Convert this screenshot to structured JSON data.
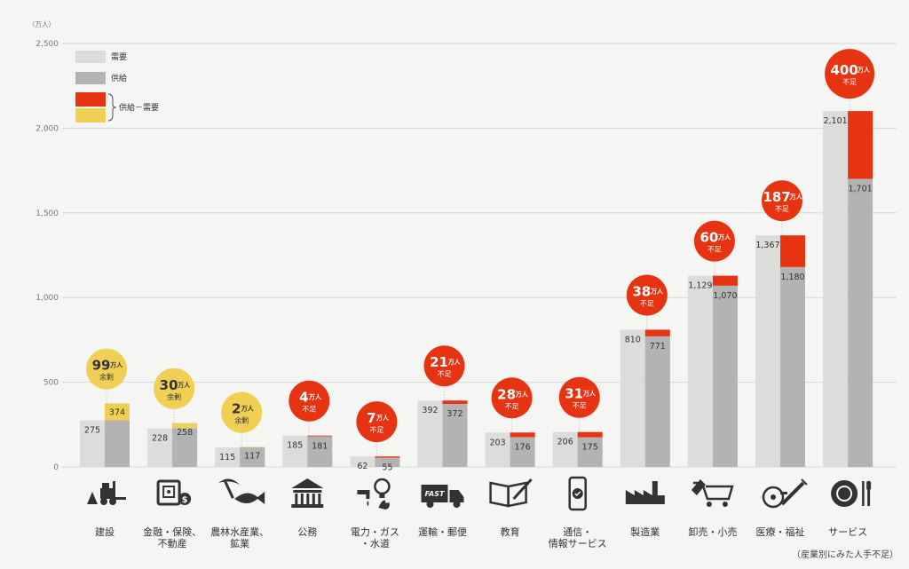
{
  "chart_data": {
    "type": "bar",
    "unit_label": "（万人）",
    "y_ticks": [
      "0",
      "500",
      "1,000",
      "1,500",
      "2,000",
      "2,500"
    ],
    "ylim": [
      0,
      2500
    ],
    "legend": {
      "demand": "需要",
      "supply": "供給",
      "diff": "供給－需要"
    },
    "categories": [
      {
        "label": [
          "建設"
        ],
        "demand": 275,
        "supply": 374,
        "demand_label": "275",
        "supply_label": "374",
        "gap": "99",
        "gap_unit": "万人",
        "gap_word": "余剰",
        "kind": "surplus",
        "icon": "construction-forklift-icon"
      },
      {
        "label": [
          "金融・保険、",
          "不動産"
        ],
        "demand": 228,
        "supply": 258,
        "demand_label": "228",
        "supply_label": "258",
        "gap": "30",
        "gap_unit": "万人",
        "gap_word": "余剰",
        "kind": "surplus",
        "icon": "safe-money-icon"
      },
      {
        "label": [
          "農林水産業、",
          "鉱業"
        ],
        "demand": 115,
        "supply": 117,
        "demand_label": "115",
        "supply_label": "117",
        "gap": "2",
        "gap_unit": "万人",
        "gap_word": "余剰",
        "kind": "surplus",
        "icon": "pickaxe-fish-icon"
      },
      {
        "label": [
          "公務"
        ],
        "demand": 185,
        "supply": 181,
        "demand_label": "185",
        "supply_label": "181",
        "gap": "4",
        "gap_unit": "万人",
        "gap_word": "不足",
        "kind": "shortage",
        "icon": "government-building-icon"
      },
      {
        "label": [
          "電力・ガス",
          "・水道"
        ],
        "demand": 62,
        "supply": 55,
        "demand_label": "62",
        "supply_label": "55",
        "gap": "7",
        "gap_unit": "万人",
        "gap_word": "不足",
        "kind": "shortage",
        "icon": "utilities-icon"
      },
      {
        "label": [
          "運輸・郵便"
        ],
        "demand": 392,
        "supply": 372,
        "demand_label": "392",
        "supply_label": "372",
        "gap": "21",
        "gap_unit": "万人",
        "gap_word": "不足",
        "kind": "shortage",
        "icon": "delivery-truck-icon"
      },
      {
        "label": [
          "教育"
        ],
        "demand": 203,
        "supply": 176,
        "demand_label": "203",
        "supply_label": "176",
        "gap": "28",
        "gap_unit": "万人",
        "gap_word": "不足",
        "kind": "shortage",
        "icon": "open-book-icon"
      },
      {
        "label": [
          "通信・",
          "情報サービス"
        ],
        "demand": 206,
        "supply": 175,
        "demand_label": "206",
        "supply_label": "175",
        "gap": "31",
        "gap_unit": "万人",
        "gap_word": "不足",
        "kind": "shortage",
        "icon": "smartphone-icon"
      },
      {
        "label": [
          "製造業"
        ],
        "demand": 810,
        "supply": 771,
        "demand_label": "810",
        "supply_label": "771",
        "gap": "38",
        "gap_unit": "万人",
        "gap_word": "不足",
        "kind": "shortage",
        "icon": "factory-icon"
      },
      {
        "label": [
          "卸売・小売"
        ],
        "demand": 1129,
        "supply": 1070,
        "demand_label": "1,129",
        "supply_label": "1,070",
        "gap": "60",
        "gap_unit": "万人",
        "gap_word": "不足",
        "kind": "shortage",
        "icon": "shopping-cart-icon"
      },
      {
        "label": [
          "医療・福祉"
        ],
        "demand": 1367,
        "supply": 1180,
        "demand_label": "1,367",
        "supply_label": "1,180",
        "gap": "187",
        "gap_unit": "万人",
        "gap_word": "不足",
        "kind": "shortage",
        "icon": "wheelchair-syringe-icon"
      },
      {
        "label": [
          "サービス"
        ],
        "demand": 2101,
        "supply": 1701,
        "demand_label": "2,101",
        "supply_label": "1,701",
        "gap": "400",
        "gap_unit": "万人",
        "gap_word": "不足",
        "kind": "shortage",
        "icon": "plate-cutlery-icon"
      }
    ],
    "note": "（産業別にみた人手不足）",
    "grid": true
  },
  "colors": {
    "background": "#f5f5f3",
    "demand": "#dcdcdb",
    "supply": "#b3b3b3",
    "shortage": "#e63312",
    "surplus": "#f0cf55",
    "grid": "#d6d6d6",
    "icon": "#333333"
  }
}
